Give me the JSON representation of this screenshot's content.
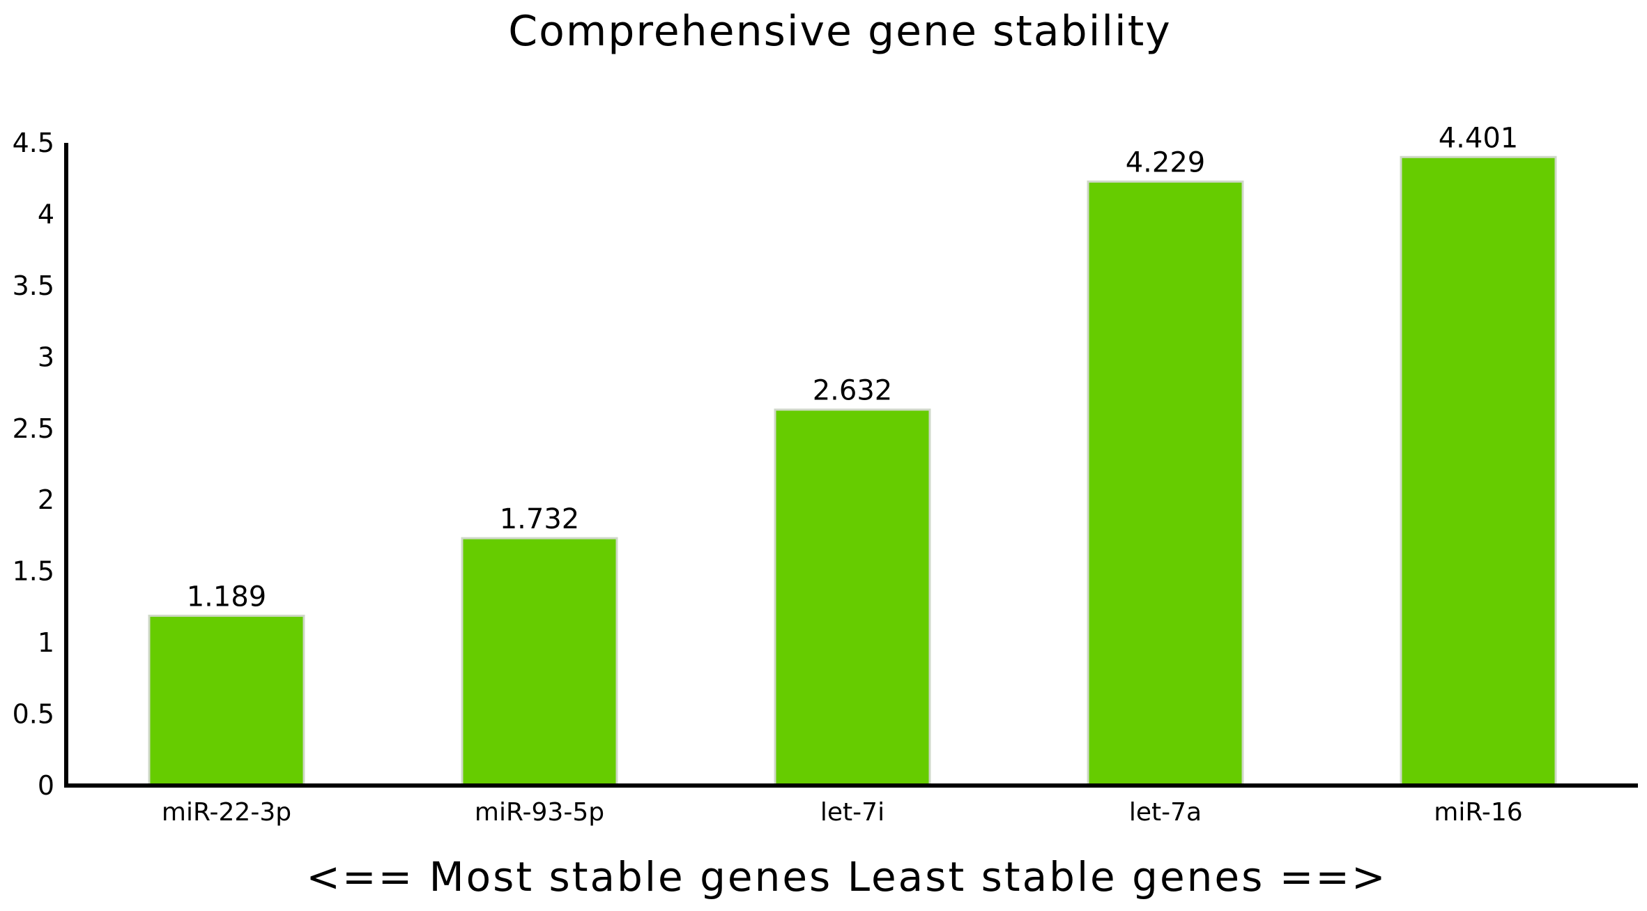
{
  "chart_data": {
    "type": "bar",
    "title": "Comprehensive gene stability",
    "xlabel": "<== Most stable genes    Least stable genes ==>",
    "ylabel": "",
    "categories": [
      "miR-22-3p",
      "miR-93-5p",
      "let-7i",
      "let-7a",
      "miR-16"
    ],
    "values": [
      1.189,
      1.732,
      2.632,
      4.229,
      4.401
    ],
    "value_labels": [
      "1.189",
      "1.732",
      "2.632",
      "4.229",
      "4.401"
    ],
    "yticks": [
      "0",
      "0.5",
      "1",
      "1.5",
      "2",
      "2.5",
      "3",
      "3.5",
      "4",
      "4.5"
    ],
    "ylim": [
      0,
      4.5
    ],
    "grid": false,
    "colors": {
      "bar_fill": "#66cc00",
      "bar_edge": "#cfd8c8",
      "axis": "#000000"
    }
  }
}
